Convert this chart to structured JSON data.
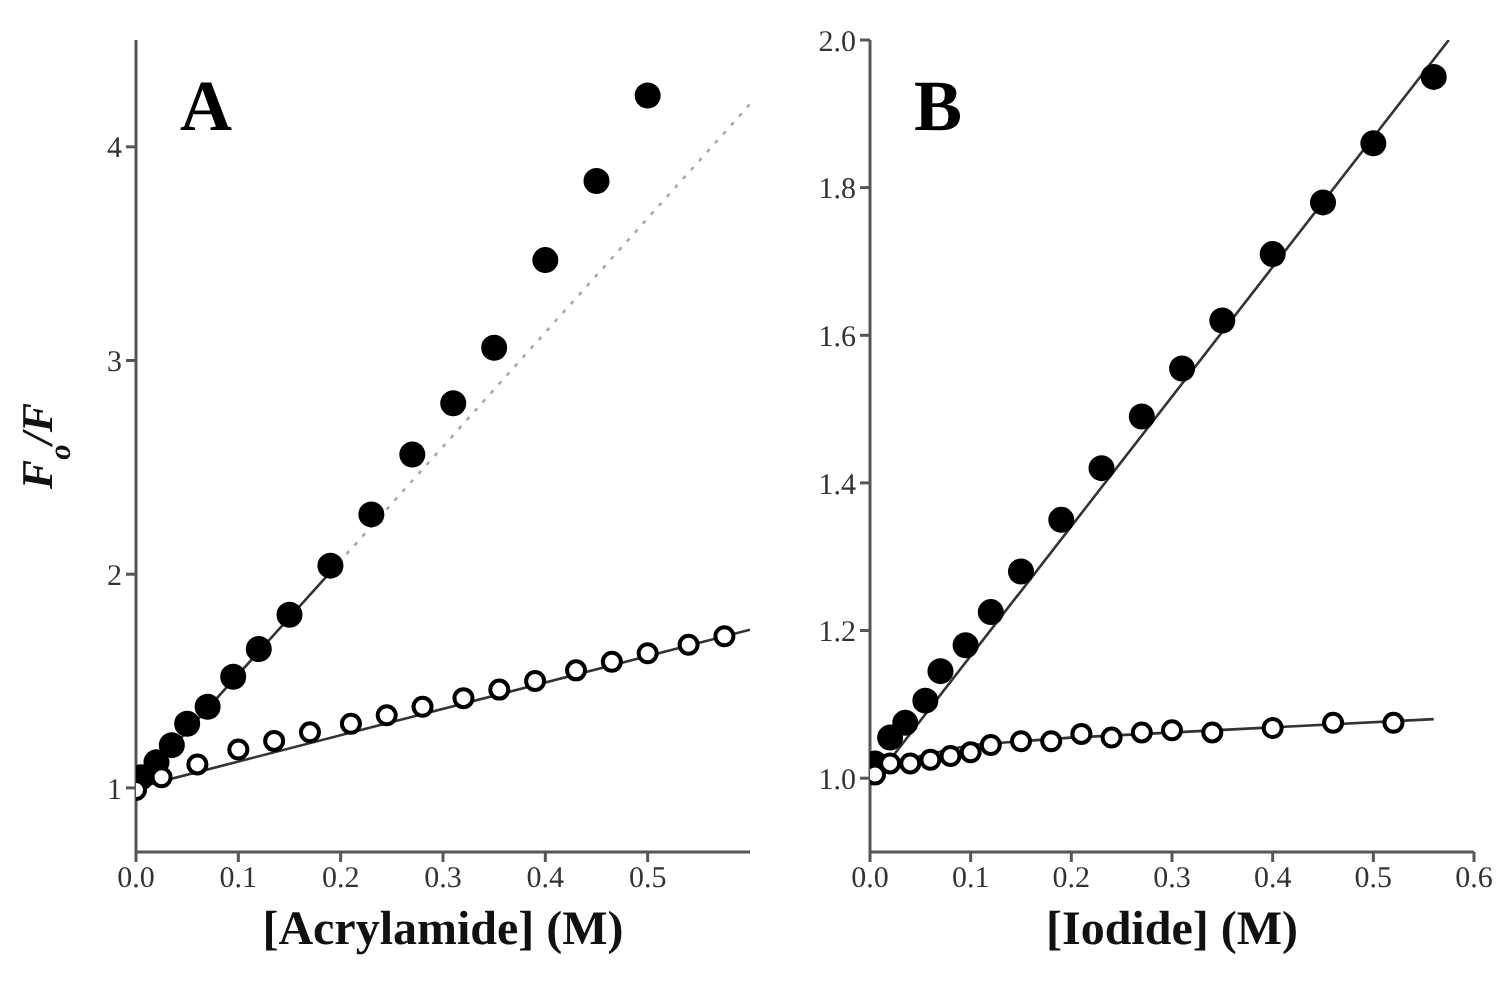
{
  "chart_data": [
    {
      "type": "scatter",
      "title": "A",
      "xlabel": "[Acrylamide] (M)",
      "ylabel": "F$_{o}$/F",
      "xlim": [
        0,
        0.6
      ],
      "xticks": [
        {
          "value": 0,
          "label": "0.0"
        },
        0.1,
        0.2,
        0.3,
        0.4,
        0.5
      ],
      "ylim": [
        0.7,
        4.5
      ],
      "yticks": [
        1,
        2,
        3,
        4
      ],
      "marker": "circle",
      "series": [
        {
          "color": "#000000",
          "x": [
            0.005,
            0.02,
            0.035,
            0.05,
            0.07,
            0.095,
            0.12,
            0.15,
            0.19,
            0.23,
            0.27,
            0.31,
            0.35,
            0.4,
            0.45,
            0.5
          ],
          "values": [
            1.05,
            1.12,
            1.2,
            1.3,
            1.38,
            1.52,
            1.65,
            1.81,
            2.04,
            2.28,
            2.56,
            2.8,
            3.06,
            3.47,
            3.84,
            4.24
          ]
        },
        {
          "color": "#ffffff",
          "x": [
            0,
            0.025,
            0.06,
            0.1,
            0.135,
            0.17,
            0.21,
            0.245,
            0.28,
            0.32,
            0.355,
            0.39,
            0.43,
            0.465,
            0.5,
            0.54,
            0.575
          ],
          "values": [
            0.99,
            1.05,
            1.11,
            1.18,
            1.22,
            1.26,
            1.3,
            1.34,
            1.38,
            1.42,
            1.46,
            1.5,
            1.55,
            1.59,
            1.63,
            1.67,
            1.71
          ]
        },
        {
          "type": "line",
          "marker": "none",
          "color": "#333333",
          "line_style": "solid",
          "x": [
            0,
            0.19
          ],
          "values": [
            1.0,
            2.01
          ]
        },
        {
          "type": "line",
          "marker": "none",
          "color": "#aaaaaa",
          "line_style": "dotted",
          "x": [
            0.19,
            0.6
          ],
          "values": [
            2.01,
            4.2
          ]
        },
        {
          "type": "line",
          "marker": "none",
          "color": "#333333",
          "line_style": "solid",
          "x": [
            0,
            0.6
          ],
          "values": [
            1.0,
            1.74
          ]
        }
      ]
    },
    {
      "type": "scatter",
      "title": "B",
      "xlabel": "[Iodide] (M)",
      "xlim": [
        0,
        0.6
      ],
      "xticks": [
        {
          "value": 0,
          "label": "0.0"
        },
        0.1,
        0.2,
        0.3,
        0.4,
        0.5,
        0.6
      ],
      "ylim": [
        0.9,
        2.0
      ],
      "yticks": [
        {
          "value": 1,
          "label": "1.0"
        },
        1.2,
        1.4,
        1.6,
        1.8,
        {
          "value": 2,
          "label": "2.0"
        }
      ],
      "marker": "circle",
      "series": [
        {
          "color": "#000000",
          "x": [
            0.005,
            0.02,
            0.035,
            0.055,
            0.07,
            0.095,
            0.12,
            0.15,
            0.19,
            0.23,
            0.27,
            0.31,
            0.35,
            0.4,
            0.45,
            0.5,
            0.56
          ],
          "values": [
            1.02,
            1.055,
            1.075,
            1.105,
            1.145,
            1.18,
            1.225,
            1.28,
            1.35,
            1.42,
            1.49,
            1.555,
            1.62,
            1.71,
            1.78,
            1.86,
            1.95
          ]
        },
        {
          "color": "#ffffff",
          "x": [
            0.005,
            0.02,
            0.04,
            0.06,
            0.08,
            0.1,
            0.12,
            0.15,
            0.18,
            0.21,
            0.24,
            0.27,
            0.3,
            0.34,
            0.4,
            0.46,
            0.52
          ],
          "values": [
            1.005,
            1.02,
            1.02,
            1.025,
            1.03,
            1.035,
            1.045,
            1.05,
            1.05,
            1.06,
            1.055,
            1.062,
            1.065,
            1.062,
            1.068,
            1.075,
            1.075
          ]
        },
        {
          "type": "line",
          "marker": "none",
          "color": "#333333",
          "line_style": "solid",
          "x": [
            0,
            0.575
          ],
          "values": [
            0.99,
            2.0
          ]
        },
        {
          "type": "line",
          "marker": "none",
          "color": "#333333",
          "line_style": "solid",
          "x": [
            0,
            0.05,
            0.1,
            0.2,
            0.56
          ],
          "values": [
            1.0,
            1.03,
            1.045,
            1.055,
            1.08
          ]
        }
      ]
    }
  ]
}
